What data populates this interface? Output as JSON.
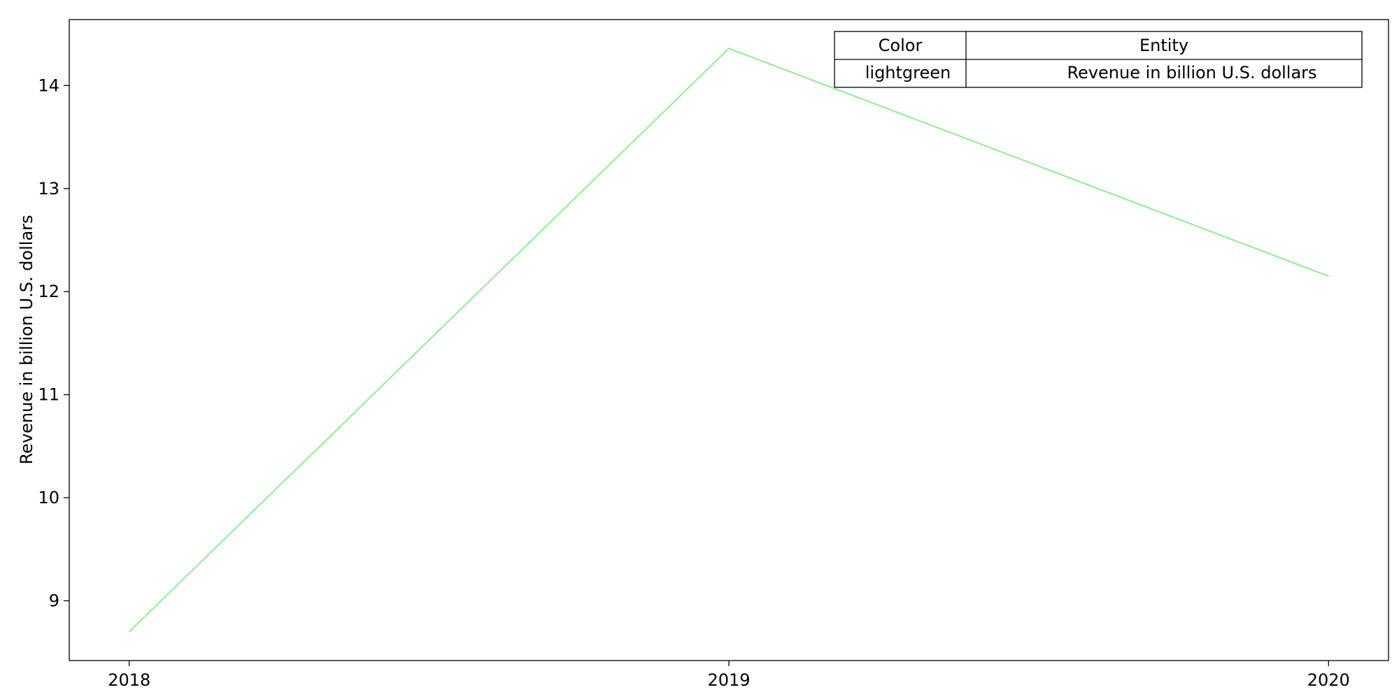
{
  "chart_data": {
    "type": "line",
    "title": "",
    "xlabel": "",
    "ylabel": "Revenue in billion U.S. dollars",
    "x": [
      "2018",
      "2019",
      "2020"
    ],
    "series": [
      {
        "name": "Revenue in billion U.S. dollars",
        "color": "#90ee90",
        "values": [
          8.7,
          14.36,
          12.15
        ]
      }
    ],
    "xlim": [
      2017.9,
      2020.1
    ],
    "ylim": [
      8.42,
      14.64
    ],
    "yticks": [
      9,
      10,
      11,
      12,
      13,
      14
    ],
    "grid": false,
    "legend_table": {
      "headers": [
        "Color",
        "Entity"
      ],
      "rows": [
        [
          "lightgreen",
          "Revenue in billion U.S. dollars"
        ]
      ],
      "placement": "top-right"
    }
  }
}
